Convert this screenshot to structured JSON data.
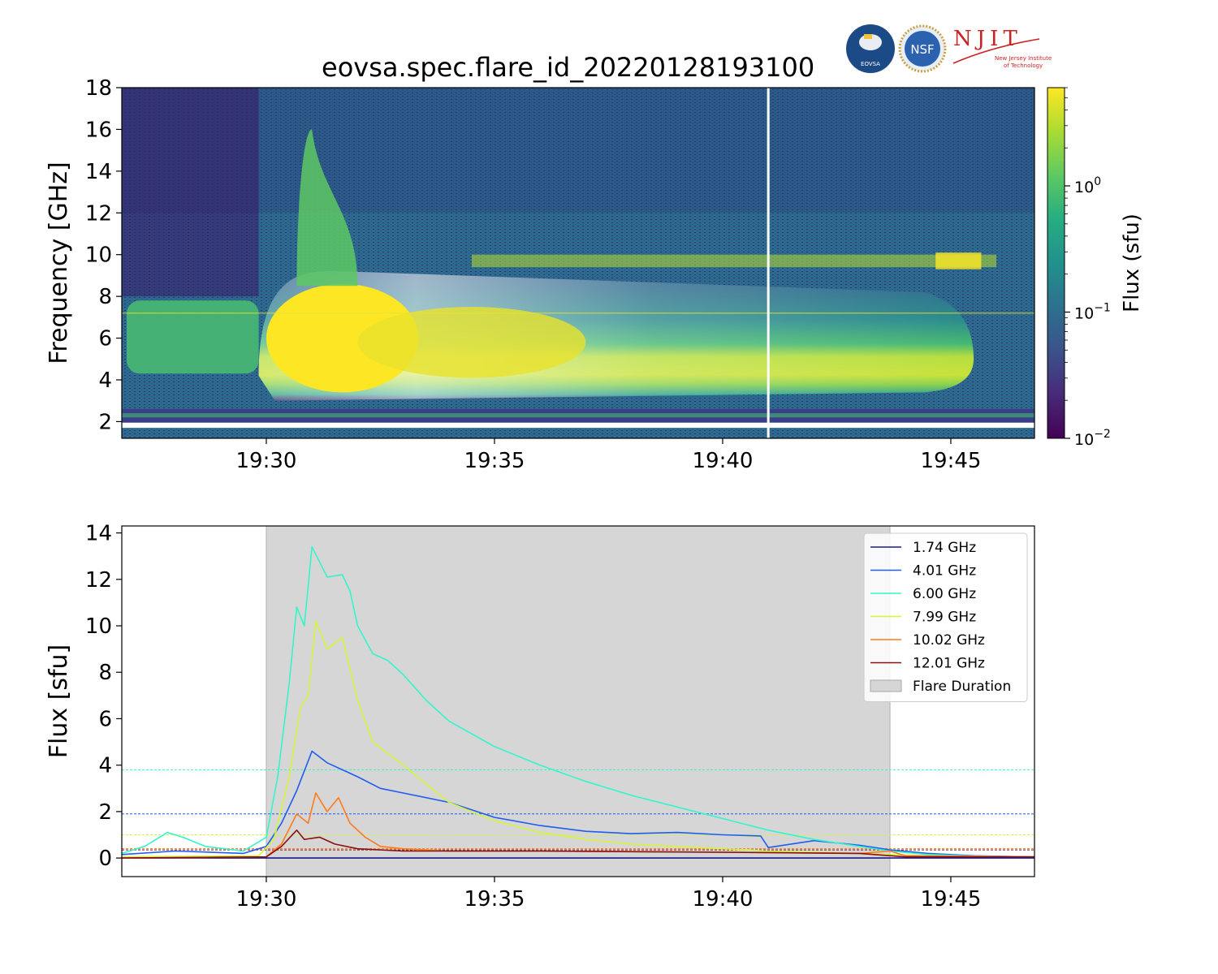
{
  "title": "eovsa.spec.flare_id_20220128193100",
  "logos": {
    "eovsa": "EOVSA",
    "nsf": "NSF",
    "njit": "NJIT",
    "njit_sub1": "New Jersey Institute",
    "njit_sub2": "of Technology"
  },
  "chart_data": [
    {
      "type": "heatmap",
      "title": "eovsa.spec.flare_id_20220128193100",
      "ylabel": "Frequency [GHz]",
      "xlim": [
        "19:26:50",
        "19:46:50"
      ],
      "ylim": [
        1.2,
        18
      ],
      "xticks": [
        "19:30",
        "19:35",
        "19:40",
        "19:45"
      ],
      "yticks": [
        "2",
        "4",
        "6",
        "8",
        "10",
        "12",
        "14",
        "16",
        "18"
      ],
      "colorbar": {
        "label": "Flux  (sfu)",
        "scale": "log",
        "range": [
          0.01,
          6
        ],
        "ticks": [
          "10^-2",
          "10^-1",
          "10^0"
        ],
        "colormap": "viridis"
      },
      "features": {
        "preflare_emission_band_ghz": [
          4.3,
          7.8
        ],
        "preflare_window": [
          "19:27:00",
          "19:29:50"
        ],
        "flare_peak_band_ghz": [
          4.0,
          8.0
        ],
        "peak_time": "19:31:00",
        "spike_top_ghz": 16,
        "rfi_band_ghz": 9.7,
        "data_gap_time": "19:41:00"
      }
    },
    {
      "type": "line",
      "ylabel": "Flux [sfu]",
      "xlim": [
        "19:26:50",
        "19:46:50"
      ],
      "ylim": [
        -0.8,
        14.3
      ],
      "xticks": [
        "19:30",
        "19:35",
        "19:40",
        "19:45"
      ],
      "yticks": [
        "0",
        "2",
        "4",
        "6",
        "8",
        "10",
        "12",
        "14"
      ],
      "legend_position": "upper-right",
      "shaded_region": {
        "name": "Flare Duration",
        "start": "19:30:00",
        "end": "19:43:40",
        "color": "#d6d6d6"
      },
      "series": [
        {
          "name": "1.74 GHz",
          "color": "#1a1a8c",
          "baseline": 0.0,
          "x": [
            "19:26:50",
            "19:30:00",
            "19:35:00",
            "19:40:00",
            "19:45:00",
            "19:46:50"
          ],
          "y": [
            0.0,
            0.0,
            0.0,
            0.0,
            0.0,
            0.0
          ]
        },
        {
          "name": "4.01 GHz",
          "color": "#1f5cf0",
          "baseline": 1.9,
          "x": [
            "19:26:50",
            "19:28:00",
            "19:29:30",
            "19:30:00",
            "19:30:20",
            "19:30:40",
            "19:31:00",
            "19:31:20",
            "19:31:40",
            "19:32:00",
            "19:32:30",
            "19:33:00",
            "19:34:00",
            "19:35:00",
            "19:36:00",
            "19:37:00",
            "19:38:00",
            "19:39:00",
            "19:40:00",
            "19:40:50",
            "19:41:00",
            "19:42:00",
            "19:43:00",
            "19:43:40",
            "19:44:30",
            "19:45:30",
            "19:46:50"
          ],
          "y": [
            0.15,
            0.3,
            0.2,
            0.5,
            1.5,
            2.9,
            4.6,
            4.1,
            3.8,
            3.5,
            3.0,
            2.8,
            2.4,
            1.75,
            1.4,
            1.15,
            1.05,
            1.1,
            1.0,
            0.95,
            0.45,
            0.75,
            0.55,
            0.35,
            0.2,
            0.1,
            0.05
          ]
        },
        {
          "name": "6.00 GHz",
          "color": "#33f5cc",
          "baseline": 3.8,
          "x": [
            "19:26:50",
            "19:27:20",
            "19:27:50",
            "19:28:10",
            "19:28:40",
            "19:29:30",
            "19:30:00",
            "19:30:15",
            "19:30:30",
            "19:30:40",
            "19:30:50",
            "19:31:00",
            "19:31:20",
            "19:31:40",
            "19:31:50",
            "19:32:00",
            "19:32:20",
            "19:32:40",
            "19:33:00",
            "19:33:30",
            "19:34:00",
            "19:35:00",
            "19:36:00",
            "19:37:00",
            "19:38:00",
            "19:39:00",
            "19:40:00",
            "19:41:00",
            "19:42:00",
            "19:43:00",
            "19:43:40",
            "19:44:30",
            "19:45:30",
            "19:46:50"
          ],
          "y": [
            0.2,
            0.5,
            1.1,
            0.9,
            0.5,
            0.3,
            0.9,
            3.5,
            7.5,
            10.8,
            10.0,
            13.4,
            12.1,
            12.2,
            11.5,
            10.0,
            8.8,
            8.5,
            7.9,
            6.8,
            5.9,
            4.8,
            4.0,
            3.3,
            2.7,
            2.2,
            1.7,
            1.2,
            0.8,
            0.5,
            0.3,
            0.15,
            0.08,
            0.05
          ]
        },
        {
          "name": "7.99 GHz",
          "color": "#d4f53a",
          "baseline": 1.0,
          "x": [
            "19:26:50",
            "19:29:50",
            "19:30:10",
            "19:30:30",
            "19:30:45",
            "19:30:55",
            "19:31:05",
            "19:31:20",
            "19:31:40",
            "19:32:00",
            "19:32:20",
            "19:32:40",
            "19:33:00",
            "19:33:30",
            "19:34:00",
            "19:35:00",
            "19:36:00",
            "19:37:00",
            "19:38:00",
            "19:39:00",
            "19:40:00",
            "19:41:00",
            "19:42:00",
            "19:43:00",
            "19:43:40",
            "19:44:30",
            "19:46:50"
          ],
          "y": [
            0.05,
            0.1,
            0.8,
            3.5,
            6.5,
            7.0,
            10.2,
            9.0,
            9.5,
            6.8,
            5.0,
            4.5,
            4.0,
            3.2,
            2.4,
            1.6,
            1.1,
            0.8,
            0.6,
            0.5,
            0.4,
            0.3,
            0.25,
            0.2,
            0.15,
            0.1,
            0.05
          ]
        },
        {
          "name": "10.02 GHz",
          "color": "#ff7a1a",
          "baseline": 0.4,
          "x": [
            "19:26:50",
            "19:30:00",
            "19:30:20",
            "19:30:40",
            "19:30:55",
            "19:31:05",
            "19:31:20",
            "19:31:35",
            "19:31:50",
            "19:32:10",
            "19:32:30",
            "19:33:00",
            "19:34:00",
            "19:36:00",
            "19:40:00",
            "19:43:00",
            "19:43:40",
            "19:44:00",
            "19:46:50"
          ],
          "y": [
            0.0,
            0.05,
            0.6,
            1.9,
            1.5,
            2.8,
            2.0,
            2.6,
            1.5,
            0.9,
            0.5,
            0.4,
            0.3,
            0.3,
            0.25,
            0.2,
            0.3,
            0.1,
            0.05
          ]
        },
        {
          "name": "12.01 GHz",
          "color": "#8b1010",
          "baseline": 0.35,
          "x": [
            "19:26:50",
            "19:30:00",
            "19:30:20",
            "19:30:40",
            "19:30:50",
            "19:31:10",
            "19:31:30",
            "19:32:00",
            "19:33:00",
            "19:34:00",
            "19:36:00",
            "19:40:00",
            "19:43:00",
            "19:44:00",
            "19:46:50"
          ],
          "y": [
            0.0,
            0.05,
            0.5,
            1.2,
            0.8,
            0.9,
            0.6,
            0.4,
            0.3,
            0.3,
            0.3,
            0.25,
            0.2,
            0.05,
            0.05
          ]
        }
      ]
    }
  ]
}
